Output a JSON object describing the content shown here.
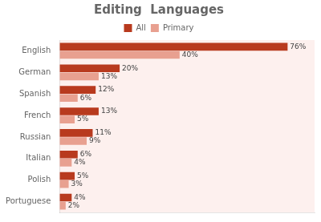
{
  "chart_data": {
    "type": "bar",
    "orientation": "horizontal",
    "title": "Editing  Languages",
    "categories": [
      "English",
      "German",
      "Spanish",
      "French",
      "Russian",
      "Italian",
      "Polish",
      "Portuguese"
    ],
    "series": [
      {
        "name": "All",
        "color": "#b83a1e",
        "values": [
          76,
          20,
          12,
          13,
          11,
          6,
          5,
          4
        ],
        "value_labels": [
          "76%",
          "20%",
          "12%",
          "13%",
          "11%",
          "6%",
          "5%",
          "4%"
        ]
      },
      {
        "name": "Primary",
        "color": "#e8a090",
        "values": [
          40,
          13,
          6,
          5,
          9,
          4,
          3,
          2
        ],
        "value_labels": [
          "40%",
          "13%",
          "6%",
          "5%",
          "9%",
          "4%",
          "3%",
          "2%"
        ]
      }
    ],
    "xlim": [
      0,
      85
    ],
    "grid": false,
    "legend": "top",
    "data_labels": true,
    "tick_labels": "y"
  }
}
